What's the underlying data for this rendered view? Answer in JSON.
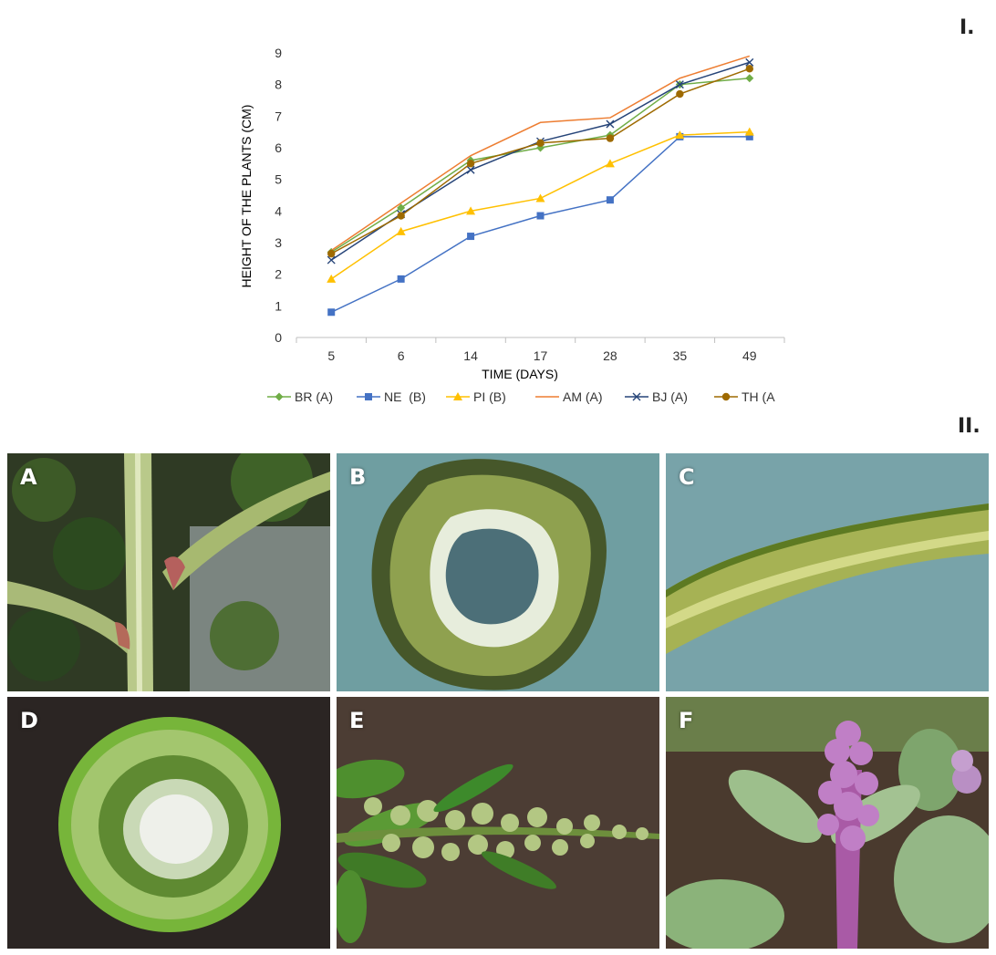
{
  "panel_labels": {
    "top": "I.",
    "bottom": "II."
  },
  "photos": [
    {
      "letter": "A",
      "subject": "plant stem with branching"
    },
    {
      "letter": "B",
      "subject": "stem cross-section with hollow pith"
    },
    {
      "letter": "C",
      "subject": "stem longitudinal close-up"
    },
    {
      "letter": "D",
      "subject": "stem cross-section with white pith"
    },
    {
      "letter": "E",
      "subject": "green inflorescence"
    },
    {
      "letter": "F",
      "subject": "purple inflorescence"
    }
  ],
  "chart_data": {
    "type": "line",
    "title": "",
    "xlabel": "TIME (DAYS)",
    "ylabel": "HEIGHT OF THE PLANTS (CM)",
    "categories": [
      "5",
      "6",
      "14",
      "17",
      "28",
      "35",
      "49"
    ],
    "ylim": [
      0,
      9
    ],
    "yticks": [
      "0",
      "1",
      "2",
      "3",
      "4",
      "5",
      "6",
      "7",
      "8",
      "9"
    ],
    "legend_position": "bottom",
    "series": [
      {
        "name": "BR (A)",
        "color": "#70ad47",
        "marker": "diamond",
        "values": [
          2.7,
          4.1,
          5.6,
          6.0,
          6.4,
          8.0,
          8.2
        ]
      },
      {
        "name": "NE  (B)",
        "color": "#4472c4",
        "marker": "square",
        "values": [
          0.8,
          1.85,
          3.2,
          3.85,
          4.35,
          6.35,
          6.35
        ]
      },
      {
        "name": "PI (B)",
        "color": "#ffc000",
        "marker": "triangle",
        "values": [
          1.85,
          3.35,
          4.0,
          4.4,
          5.5,
          6.4,
          6.5
        ]
      },
      {
        "name": "AM (A)",
        "color": "#ed7d31",
        "marker": "none",
        "values": [
          2.75,
          4.25,
          5.75,
          6.8,
          6.95,
          8.2,
          8.9
        ]
      },
      {
        "name": "BJ (A)",
        "color": "#264478",
        "marker": "x",
        "values": [
          2.45,
          3.9,
          5.3,
          6.2,
          6.75,
          8.0,
          8.7
        ]
      },
      {
        "name": "TH (A",
        "color": "#9e6a00",
        "marker": "circle",
        "values": [
          2.65,
          3.85,
          5.5,
          6.15,
          6.3,
          7.7,
          8.5
        ]
      }
    ]
  }
}
